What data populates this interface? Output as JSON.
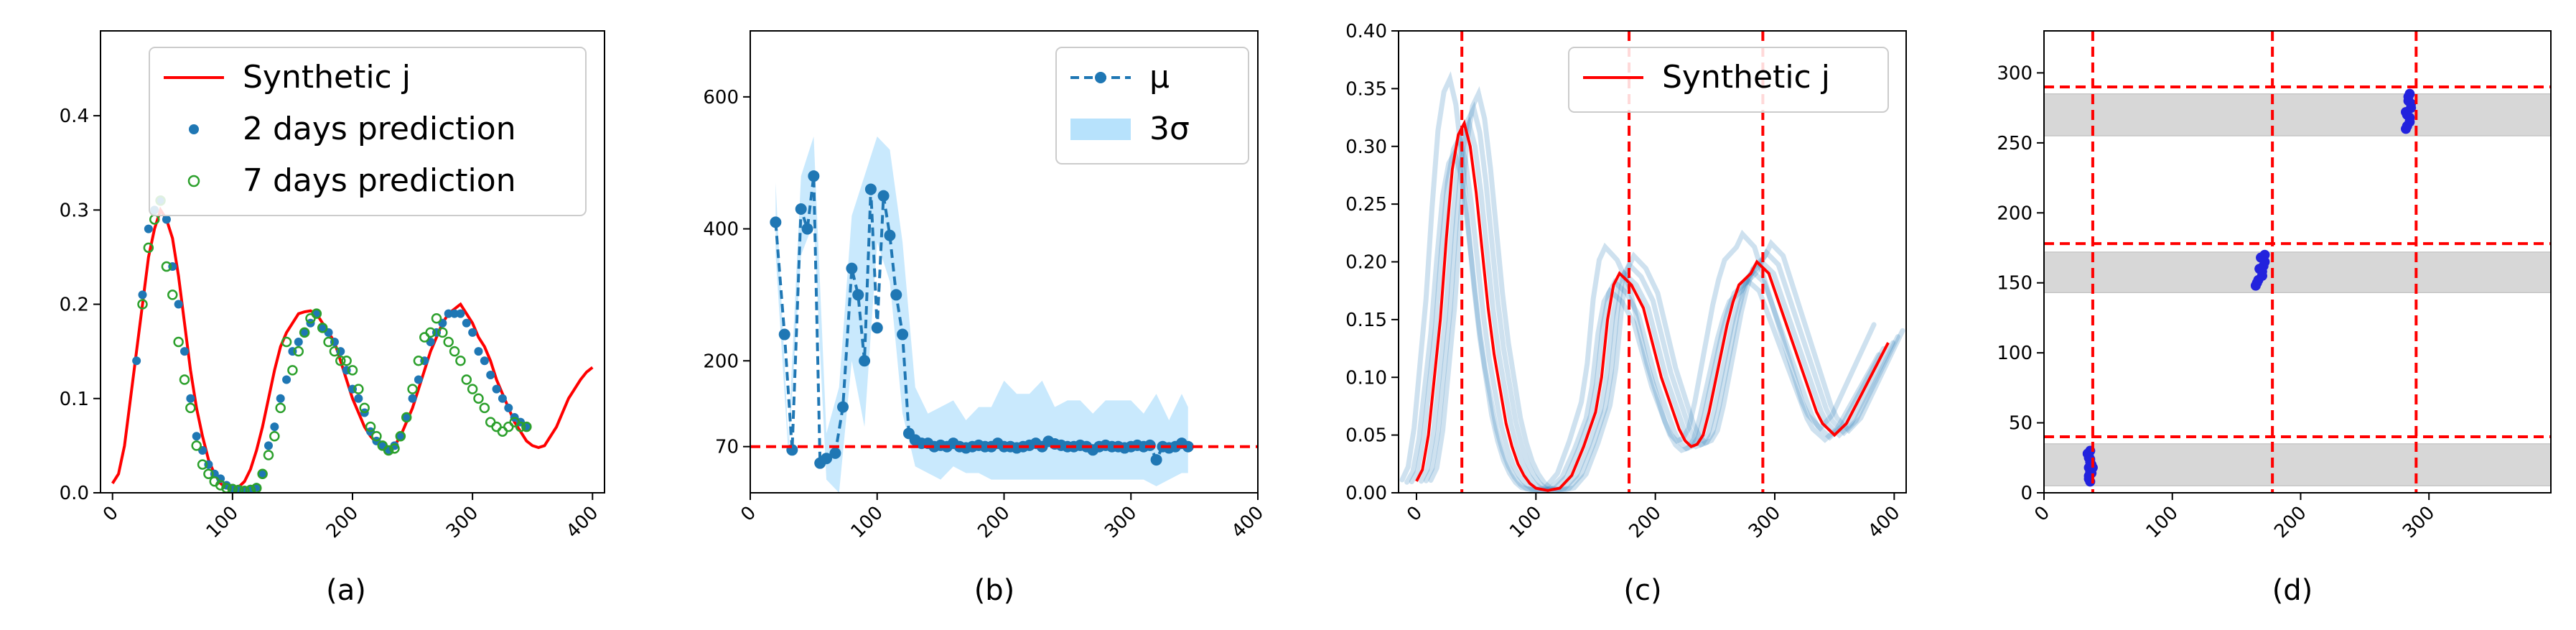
{
  "figure": {
    "colors": {
      "synthetic": "#ff0000",
      "pred2": "#1f77b4",
      "pred7": "#2ca02c",
      "band": "#87cefa",
      "refline": "#ff0000",
      "point_d": "#2222dd",
      "shade": "#d3d3d3"
    }
  },
  "chart_data": [
    {
      "type": "line",
      "caption": "(a)",
      "xlim": [
        -10,
        410
      ],
      "ylim": [
        0,
        0.49
      ],
      "xticks": [
        0,
        100,
        200,
        300,
        400
      ],
      "yticks": [
        0.0,
        0.1,
        0.2,
        0.3,
        0.4
      ],
      "ytick_labels": [
        "0.0",
        "0.1",
        "0.2",
        "0.3",
        "0.4"
      ],
      "legend_position": "top-right",
      "series": [
        {
          "name": "Synthetic j",
          "kind": "line",
          "x": [
            0,
            5,
            10,
            15,
            20,
            25,
            30,
            35,
            40,
            45,
            50,
            55,
            60,
            65,
            70,
            75,
            80,
            85,
            90,
            95,
            100,
            105,
            110,
            115,
            120,
            125,
            130,
            135,
            140,
            145,
            150,
            155,
            160,
            165,
            170,
            175,
            180,
            185,
            190,
            195,
            200,
            205,
            210,
            215,
            220,
            225,
            230,
            235,
            240,
            245,
            250,
            255,
            260,
            265,
            270,
            275,
            280,
            285,
            290,
            295,
            300,
            305,
            310,
            315,
            320,
            325,
            330,
            335,
            340,
            345,
            350,
            355,
            360,
            365,
            370,
            375,
            380,
            385,
            390,
            395,
            400
          ],
          "y": [
            0.01,
            0.02,
            0.05,
            0.1,
            0.15,
            0.2,
            0.25,
            0.28,
            0.3,
            0.29,
            0.27,
            0.23,
            0.18,
            0.13,
            0.09,
            0.06,
            0.035,
            0.02,
            0.01,
            0.005,
            0.004,
            0.006,
            0.012,
            0.025,
            0.045,
            0.07,
            0.1,
            0.13,
            0.155,
            0.17,
            0.18,
            0.19,
            0.192,
            0.193,
            0.19,
            0.18,
            0.17,
            0.16,
            0.14,
            0.12,
            0.1,
            0.085,
            0.07,
            0.06,
            0.053,
            0.05,
            0.048,
            0.05,
            0.06,
            0.075,
            0.09,
            0.11,
            0.13,
            0.15,
            0.165,
            0.18,
            0.19,
            0.195,
            0.2,
            0.19,
            0.18,
            0.165,
            0.155,
            0.14,
            0.12,
            0.105,
            0.09,
            0.075,
            0.065,
            0.055,
            0.05,
            0.048,
            0.05,
            0.06,
            0.07,
            0.085,
            0.1,
            0.11,
            0.12,
            0.128,
            0.133
          ]
        },
        {
          "name": "2 days prediction",
          "kind": "scatter",
          "x": [
            20,
            25,
            30,
            35,
            40,
            45,
            50,
            55,
            60,
            65,
            70,
            75,
            80,
            85,
            90,
            95,
            100,
            105,
            110,
            115,
            120,
            125,
            130,
            135,
            140,
            145,
            150,
            155,
            160,
            165,
            170,
            175,
            180,
            185,
            190,
            195,
            200,
            205,
            210,
            215,
            220,
            225,
            230,
            235,
            240,
            245,
            250,
            255,
            260,
            265,
            270,
            275,
            280,
            285,
            290,
            295,
            300,
            305,
            310,
            315,
            320,
            325,
            330,
            335,
            340,
            345
          ],
          "y": [
            0.14,
            0.21,
            0.28,
            0.3,
            0.31,
            0.29,
            0.24,
            0.2,
            0.15,
            0.1,
            0.06,
            0.045,
            0.03,
            0.02,
            0.015,
            0.008,
            0.005,
            0.004,
            0.003,
            0.004,
            0.006,
            0.02,
            0.05,
            0.07,
            0.1,
            0.12,
            0.15,
            0.16,
            0.17,
            0.18,
            0.19,
            0.175,
            0.17,
            0.16,
            0.15,
            0.13,
            0.11,
            0.1,
            0.085,
            0.065,
            0.055,
            0.05,
            0.045,
            0.05,
            0.06,
            0.08,
            0.1,
            0.12,
            0.14,
            0.16,
            0.17,
            0.18,
            0.19,
            0.19,
            0.19,
            0.18,
            0.17,
            0.15,
            0.14,
            0.125,
            0.11,
            0.1,
            0.09,
            0.08,
            0.075,
            0.07
          ]
        },
        {
          "name": "7 days prediction",
          "kind": "scatter_open",
          "x": [
            25,
            30,
            35,
            40,
            45,
            50,
            55,
            60,
            65,
            70,
            75,
            80,
            85,
            90,
            95,
            100,
            105,
            110,
            115,
            120,
            125,
            130,
            135,
            140,
            145,
            150,
            155,
            160,
            165,
            170,
            175,
            180,
            185,
            190,
            195,
            200,
            205,
            210,
            215,
            220,
            225,
            230,
            235,
            240,
            245,
            250,
            255,
            260,
            265,
            270,
            275,
            280,
            285,
            290,
            295,
            300,
            305,
            310,
            315,
            320,
            325,
            330,
            335,
            340,
            345
          ],
          "y": [
            0.2,
            0.26,
            0.29,
            0.31,
            0.24,
            0.21,
            0.16,
            0.12,
            0.09,
            0.05,
            0.03,
            0.02,
            0.012,
            0.008,
            0.005,
            0.004,
            0.003,
            0.002,
            0.003,
            0.005,
            0.02,
            0.04,
            0.06,
            0.09,
            0.16,
            0.13,
            0.15,
            0.17,
            0.185,
            0.19,
            0.175,
            0.16,
            0.15,
            0.14,
            0.14,
            0.13,
            0.11,
            0.09,
            0.07,
            0.06,
            0.05,
            0.045,
            0.047,
            0.06,
            0.08,
            0.11,
            0.14,
            0.165,
            0.17,
            0.185,
            0.17,
            0.16,
            0.15,
            0.14,
            0.12,
            0.11,
            0.1,
            0.09,
            0.075,
            0.07,
            0.065,
            0.07,
            0.075,
            0.07,
            0.07
          ]
        }
      ]
    },
    {
      "type": "line",
      "caption": "(b)",
      "xlim": [
        0,
        400
      ],
      "ylim": [
        0,
        700
      ],
      "xticks": [
        0,
        100,
        200,
        300,
        400
      ],
      "yticks": [
        70,
        200,
        400,
        600
      ],
      "ytick_labels": [
        "70",
        "200",
        "400",
        "600"
      ],
      "legend_position": "top-right",
      "refline_y": 70,
      "series": [
        {
          "name": "μ",
          "kind": "dashed_line_markers",
          "x": [
            20,
            27,
            33,
            40,
            45,
            50,
            55,
            60,
            67,
            73,
            80,
            85,
            90,
            95,
            100,
            105,
            110,
            115,
            120,
            125,
            130,
            135,
            140,
            145,
            150,
            155,
            160,
            165,
            170,
            175,
            180,
            185,
            190,
            195,
            200,
            205,
            210,
            215,
            220,
            225,
            230,
            235,
            240,
            245,
            250,
            255,
            260,
            265,
            270,
            275,
            280,
            285,
            290,
            295,
            300,
            305,
            310,
            315,
            320,
            325,
            330,
            335,
            340,
            345
          ],
          "y": [
            410,
            240,
            65,
            430,
            400,
            480,
            45,
            52,
            60,
            130,
            340,
            300,
            200,
            460,
            250,
            450,
            390,
            300,
            240,
            90,
            80,
            75,
            75,
            70,
            72,
            70,
            75,
            70,
            68,
            70,
            72,
            70,
            70,
            75,
            70,
            70,
            68,
            70,
            72,
            75,
            70,
            78,
            74,
            72,
            70,
            70,
            72,
            70,
            65,
            70,
            72,
            70,
            70,
            68,
            70,
            72,
            70,
            72,
            50,
            70,
            68,
            70,
            75,
            70
          ]
        },
        {
          "name": "3σ",
          "kind": "band",
          "x": [
            20,
            30,
            40,
            50,
            60,
            70,
            80,
            90,
            100,
            110,
            120,
            130,
            140,
            150,
            160,
            170,
            180,
            190,
            200,
            210,
            220,
            230,
            240,
            250,
            260,
            270,
            280,
            290,
            300,
            310,
            320,
            330,
            340,
            345
          ],
          "lower": [
            360,
            60,
            360,
            410,
            20,
            0,
            200,
            100,
            380,
            320,
            120,
            40,
            30,
            20,
            40,
            30,
            30,
            20,
            20,
            20,
            20,
            20,
            20,
            20,
            20,
            20,
            20,
            20,
            20,
            20,
            10,
            20,
            30,
            30
          ],
          "upper": [
            470,
            80,
            480,
            540,
            90,
            160,
            420,
            480,
            540,
            520,
            380,
            160,
            120,
            130,
            140,
            110,
            130,
            130,
            170,
            150,
            150,
            170,
            130,
            140,
            140,
            120,
            140,
            140,
            140,
            120,
            150,
            110,
            150,
            130
          ]
        }
      ]
    },
    {
      "type": "line",
      "caption": "(c)",
      "xlim": [
        -15,
        410
      ],
      "ylim": [
        0,
        0.4
      ],
      "xticks": [
        0,
        100,
        200,
        300,
        400
      ],
      "yticks": [
        0.0,
        0.05,
        0.1,
        0.15,
        0.2,
        0.25,
        0.3,
        0.35,
        0.4
      ],
      "ytick_labels": [
        "0.00",
        "0.05",
        "0.10",
        "0.15",
        "0.20",
        "0.25",
        "0.30",
        "0.35",
        "0.40"
      ],
      "legend_position": "top-right",
      "vlines_x": [
        38,
        178,
        290
      ],
      "series": [
        {
          "name": "Synthetic j",
          "kind": "line",
          "x": [
            0,
            5,
            10,
            15,
            20,
            25,
            30,
            35,
            40,
            45,
            50,
            55,
            60,
            65,
            70,
            75,
            80,
            85,
            90,
            95,
            100,
            110,
            120,
            130,
            140,
            150,
            155,
            160,
            165,
            170,
            175,
            180,
            185,
            190,
            195,
            200,
            205,
            210,
            215,
            220,
            225,
            230,
            235,
            240,
            245,
            250,
            255,
            260,
            265,
            270,
            275,
            280,
            285,
            290,
            295,
            300,
            305,
            310,
            315,
            320,
            325,
            330,
            335,
            340,
            345,
            350,
            355,
            360,
            370,
            380,
            390,
            395
          ],
          "y": [
            0.01,
            0.02,
            0.05,
            0.1,
            0.15,
            0.22,
            0.28,
            0.31,
            0.32,
            0.3,
            0.26,
            0.21,
            0.16,
            0.12,
            0.09,
            0.06,
            0.04,
            0.025,
            0.015,
            0.008,
            0.004,
            0.002,
            0.004,
            0.015,
            0.04,
            0.07,
            0.1,
            0.15,
            0.18,
            0.19,
            0.185,
            0.18,
            0.17,
            0.16,
            0.14,
            0.12,
            0.1,
            0.085,
            0.07,
            0.055,
            0.045,
            0.04,
            0.042,
            0.05,
            0.07,
            0.095,
            0.12,
            0.145,
            0.165,
            0.18,
            0.185,
            0.19,
            0.2,
            0.195,
            0.19,
            0.175,
            0.16,
            0.145,
            0.13,
            0.115,
            0.1,
            0.085,
            0.07,
            0.06,
            0.055,
            0.05,
            0.055,
            0.06,
            0.08,
            0.1,
            0.12,
            0.13
          ]
        }
      ]
    },
    {
      "type": "scatter",
      "caption": "(d)",
      "xlim": [
        0,
        395
      ],
      "ylim": [
        0,
        330
      ],
      "xticks": [
        0,
        100,
        200,
        300
      ],
      "yticks": [
        0,
        50,
        100,
        150,
        200,
        250,
        300
      ],
      "ytick_labels": [
        "0",
        "50",
        "100",
        "150",
        "200",
        "250",
        "300"
      ],
      "vlines_x": [
        38,
        178,
        290
      ],
      "hlines_y": [
        40,
        178,
        290
      ],
      "bands_y": [
        [
          5,
          35
        ],
        [
          143,
          172
        ],
        [
          255,
          285
        ]
      ],
      "series": [
        {
          "name": "",
          "kind": "scatter",
          "x": [
            35,
            36,
            35,
            37,
            36,
            35,
            34,
            36,
            37,
            35,
            36,
            38,
            36,
            35,
            37,
            165,
            170,
            168,
            172,
            166,
            170,
            171,
            169,
            167,
            170,
            172,
            168,
            282,
            285,
            283,
            286,
            284,
            282,
            285,
            283,
            286,
            284,
            285
          ],
          "y": [
            10,
            15,
            18,
            20,
            22,
            25,
            28,
            30,
            14,
            12,
            8,
            18,
            24,
            26,
            20,
            148,
            155,
            160,
            165,
            150,
            158,
            162,
            168,
            152,
            155,
            170,
            160,
            260,
            265,
            270,
            275,
            280,
            272,
            268,
            262,
            278,
            283,
            285
          ]
        }
      ]
    }
  ]
}
